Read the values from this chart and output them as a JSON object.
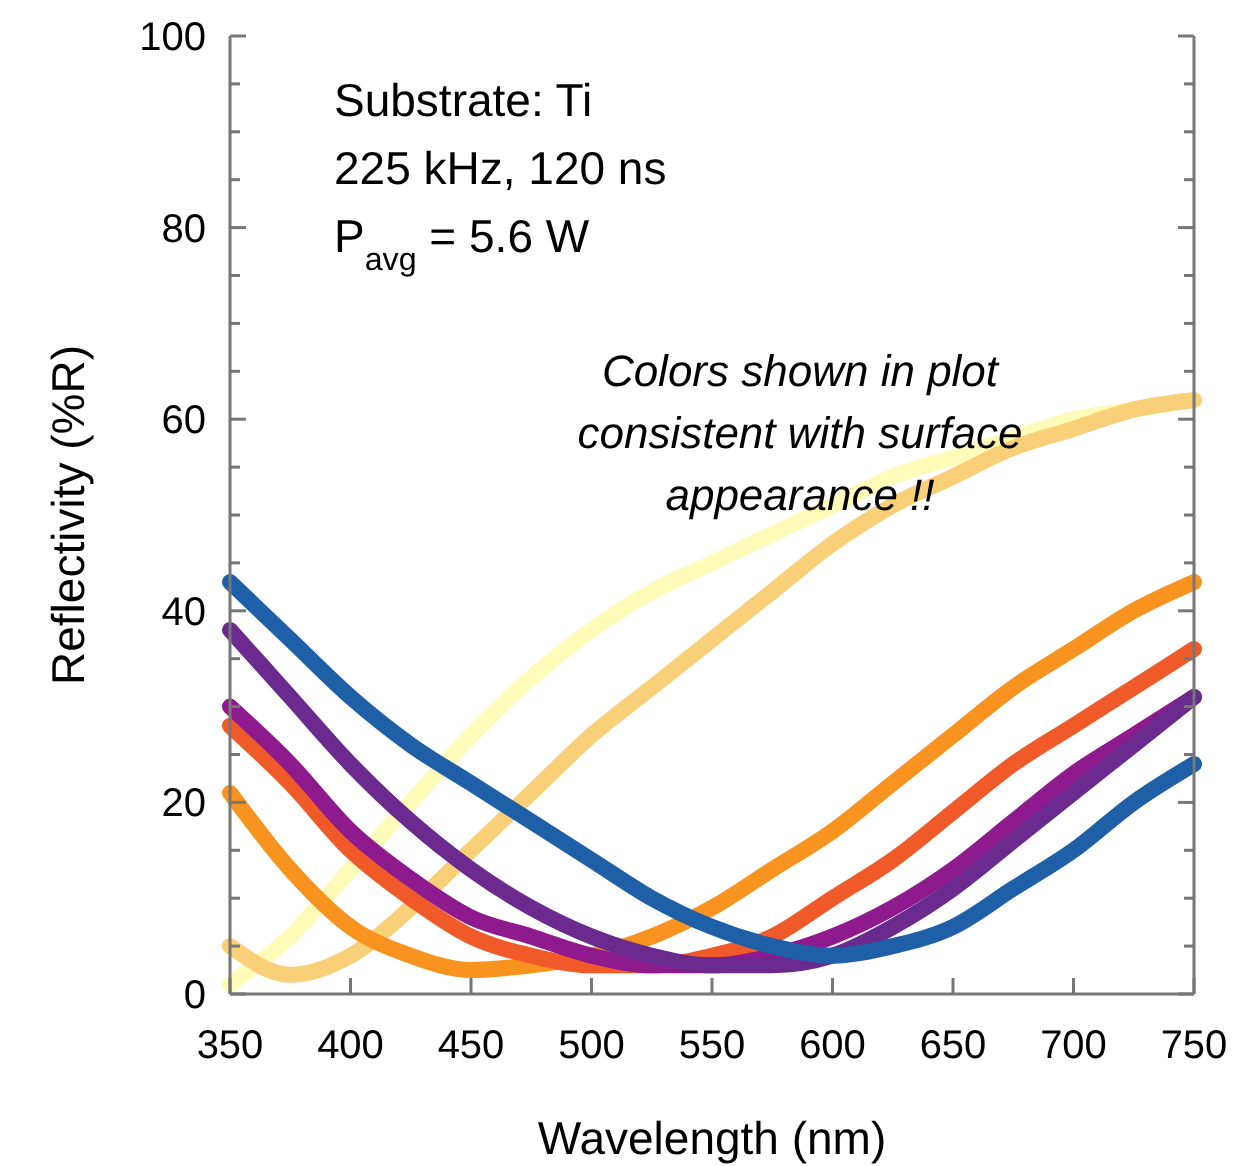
{
  "chart_data": {
    "type": "line",
    "xlabel": "Wavelength (nm)",
    "ylabel": "Reflectivity (%R)",
    "annotations": [
      "Substrate: Ti",
      "225 kHz, 120 ns",
      "P$_{avg}$ = 5.6 W",
      "Colors shown in plot consistent with surface appearance !!"
    ],
    "x": [
      350,
      375,
      400,
      425,
      450,
      475,
      500,
      525,
      550,
      575,
      600,
      625,
      650,
      675,
      700,
      725,
      750
    ],
    "xlim": [
      350,
      750
    ],
    "xticks": [
      350,
      400,
      450,
      500,
      550,
      600,
      650,
      700,
      750
    ],
    "ylim": [
      0,
      100
    ],
    "yticks": [
      0,
      {
        "value": 5,
        "label": null
      },
      {
        "value": 10,
        "label": null
      },
      {
        "value": 15,
        "label": null
      },
      20,
      {
        "value": 25,
        "label": null
      },
      {
        "value": 30,
        "label": null
      },
      {
        "value": 35,
        "label": null
      },
      40,
      {
        "value": 45,
        "label": null
      },
      {
        "value": 50,
        "label": null
      },
      {
        "value": 55,
        "label": null
      },
      60,
      {
        "value": 65,
        "label": null
      },
      {
        "value": 70,
        "label": null
      },
      {
        "value": 75,
        "label": null
      },
      80,
      {
        "value": 85,
        "label": null
      },
      {
        "value": 90,
        "label": null
      },
      {
        "value": 95,
        "label": null
      },
      100
    ],
    "grid": false,
    "marker": "none",
    "line_style": "solid",
    "series": [
      {
        "color": "#fffbb8",
        "values": [
          1,
          6,
          13,
          20,
          27,
          33,
          38,
          42,
          45,
          48,
          51,
          54,
          56,
          58,
          60,
          61,
          62
        ]
      },
      {
        "color": "#f9cf78",
        "values": [
          5,
          2,
          4,
          9,
          15,
          21,
          27,
          32,
          37,
          42,
          47,
          51,
          54,
          57,
          59,
          61,
          62
        ]
      },
      {
        "color": "#f7931e",
        "values": [
          21,
          13,
          7,
          4,
          2.5,
          3,
          4,
          6,
          9,
          13,
          17,
          22,
          27,
          32,
          36,
          40,
          43
        ]
      },
      {
        "color": "#f05a28",
        "values": [
          28,
          22,
          15,
          10,
          6,
          4,
          3,
          3,
          4,
          6,
          10,
          14,
          19,
          24,
          28,
          32,
          36
        ]
      },
      {
        "color": "#8e1a8e",
        "values": [
          30,
          24,
          17,
          12,
          8,
          6,
          4,
          3,
          3,
          4,
          6,
          9,
          13,
          18,
          23,
          27,
          31
        ]
      },
      {
        "color": "#6a2a8e",
        "values": [
          38,
          31,
          24,
          18,
          13,
          9,
          6,
          4,
          3,
          3,
          4,
          7,
          11,
          16,
          21,
          26,
          31
        ]
      },
      {
        "color": "#1f5fa8",
        "values": [
          43,
          37,
          31,
          26,
          22,
          18,
          14,
          10,
          7,
          5,
          4,
          5,
          7,
          11,
          15,
          20,
          24
        ]
      }
    ]
  }
}
